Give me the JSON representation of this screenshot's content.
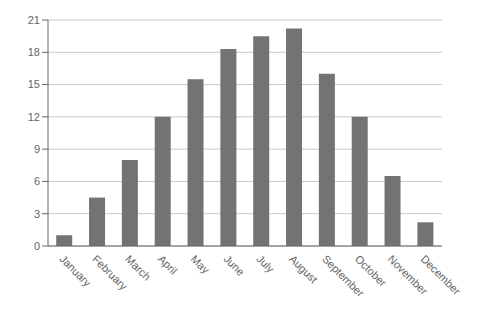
{
  "chart_data": {
    "type": "bar",
    "categories": [
      "January",
      "February",
      "March",
      "April",
      "May",
      "June",
      "July",
      "August",
      "September",
      "October",
      "November",
      "December"
    ],
    "values": [
      1.0,
      4.5,
      8.0,
      12.0,
      15.5,
      18.3,
      19.5,
      20.2,
      16.0,
      12.0,
      6.5,
      2.2
    ],
    "color": "#737373",
    "ylim": [
      0,
      21
    ],
    "yticks": [
      0,
      3,
      6,
      9,
      12,
      15,
      18,
      21
    ],
    "grid": true
  }
}
